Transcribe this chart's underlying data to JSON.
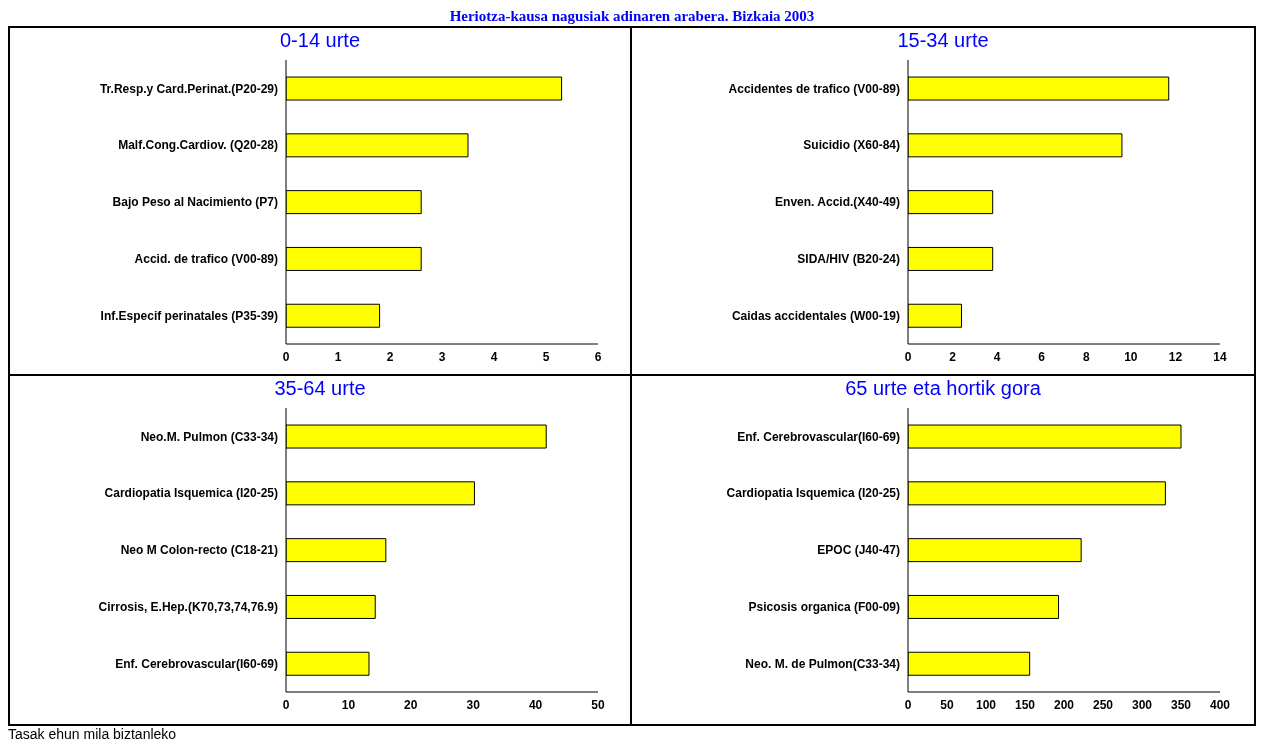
{
  "chart_data": [
    {
      "type": "bar",
      "orientation": "horizontal",
      "title": "0-14 urte",
      "annotations": [
        "Heriotza-kausa nagusiak adinaren arabera. Bizkaia 2003"
      ],
      "categories": [
        "Tr.Resp.y Card.Perinat.(P20-29)",
        "Malf.Cong.Cardiov. (Q20-28)",
        "Bajo Peso al Nacimiento (P7)",
        "Accid. de trafico (V00-89)",
        "Inf.Especif perinatales (P35-39)"
      ],
      "values": [
        5.3,
        3.5,
        2.6,
        2.6,
        1.8
      ],
      "color": "#ffff00",
      "xlim": [
        0,
        6
      ],
      "xticks": [
        0,
        1,
        2,
        3,
        4,
        5,
        6
      ]
    },
    {
      "type": "bar",
      "orientation": "horizontal",
      "title": "15-34 urte",
      "categories": [
        "Accidentes de trafico (V00-89)",
        "Suicidio (X60-84)",
        "Enven. Accid.(X40-49)",
        "SIDA/HIV (B20-24)",
        "Caidas accidentales (W00-19)"
      ],
      "values": [
        11.7,
        9.6,
        3.8,
        3.8,
        2.4
      ],
      "color": "#ffff00",
      "xlim": [
        0,
        14
      ],
      "xticks": [
        0,
        2,
        4,
        6,
        8,
        10,
        12,
        14
      ]
    },
    {
      "type": "bar",
      "orientation": "horizontal",
      "title": "35-64 urte",
      "annotations": [
        "Tasak ehun mila biztanleko"
      ],
      "categories": [
        "Neo.M. Pulmon (C33-34)",
        "Cardiopatia Isquemica (I20-25)",
        "Neo M Colon-recto (C18-21)",
        "Cirrosis, E.Hep.(K70,73,74,76.9)",
        "Enf. Cerebrovascular(I60-69)"
      ],
      "values": [
        41.7,
        30.2,
        16,
        14.3,
        13.3
      ],
      "color": "#ffff00",
      "xlim": [
        0,
        50
      ],
      "xticks": [
        0,
        10,
        20,
        30,
        40,
        50
      ]
    },
    {
      "type": "bar",
      "orientation": "horizontal",
      "title": "65 urte eta hortik gora",
      "categories": [
        "Enf. Cerebrovascular(I60-69)",
        "Cardiopatia Isquemica (I20-25)",
        "EPOC (J40-47)",
        "Psicosis organica (F00-09)",
        "Neo. M. de Pulmon(C33-34)"
      ],
      "values": [
        350,
        330,
        222,
        193,
        156
      ],
      "color": "#ffff00",
      "xlim": [
        0,
        400
      ],
      "xticks": [
        0,
        50,
        100,
        150,
        200,
        250,
        300,
        350,
        400
      ]
    }
  ]
}
